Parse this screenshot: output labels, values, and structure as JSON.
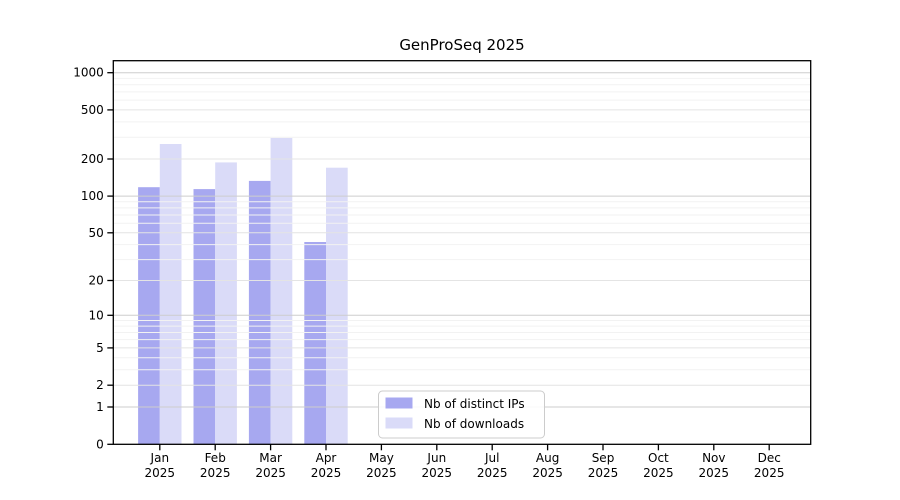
{
  "title": "GenProSeq 2025",
  "colors": {
    "distinct_ips": "#a7a8f0",
    "downloads": "#dadbf8",
    "grid_major": "#cdcdcd",
    "grid_labeled_minor": "#e4e4e4",
    "grid_minor": "#f2f2f2",
    "axis": "#000000",
    "legend_border": "#cccccc"
  },
  "legend": {
    "items": [
      {
        "label": "Nb of distinct IPs",
        "color": "#a7a8f0"
      },
      {
        "label": "Nb of downloads",
        "color": "#dadbf8"
      }
    ]
  },
  "chart_data": {
    "type": "bar",
    "title": "GenProSeq 2025",
    "categories": [
      "Jan 2025",
      "Feb 2025",
      "Mar 2025",
      "Apr 2025",
      "May 2025",
      "Jun 2025",
      "Jul 2025",
      "Aug 2025",
      "Sep 2025",
      "Oct 2025",
      "Nov 2025",
      "Dec 2025"
    ],
    "series": [
      {
        "name": "Nb of distinct IPs",
        "key": "distinct-ips",
        "color": "#a7a8f0",
        "values": [
          118,
          114,
          133,
          42,
          0,
          0,
          0,
          0,
          0,
          0,
          0,
          0
        ]
      },
      {
        "name": "Nb of downloads",
        "key": "downloads",
        "color": "#dadbf8",
        "values": [
          265,
          188,
          297,
          170,
          0,
          0,
          0,
          0,
          0,
          0,
          0,
          0
        ]
      }
    ],
    "xlabel": "",
    "ylabel": "",
    "yscale": "log(1+y)",
    "y_ticks": [
      0,
      1,
      2,
      5,
      10,
      20,
      50,
      100,
      200,
      500,
      1000
    ],
    "ylim": [
      0,
      1200
    ],
    "grid": "horizontal, drawn over bars",
    "legend_position": "inside, lower center"
  }
}
